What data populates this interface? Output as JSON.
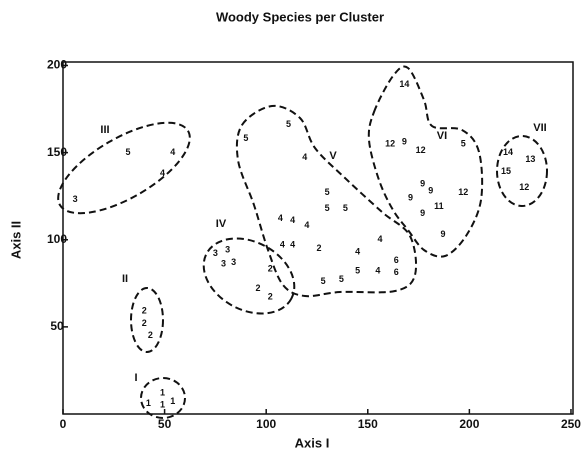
{
  "chart_data": {
    "type": "scatter",
    "title": "Woody Species per Cluster",
    "x_label": "Axis I",
    "y_label": "Axis II",
    "xlim": [
      0,
      251
    ],
    "ylim": [
      0,
      202
    ],
    "xticks": [
      0,
      50,
      100,
      150,
      200,
      250
    ],
    "yticks": [
      50,
      100,
      150,
      200
    ],
    "clusters": [
      "I",
      "II",
      "III",
      "IV",
      "V",
      "VI",
      "VII"
    ],
    "x": [
      42,
      49,
      54,
      49,
      40,
      40,
      43,
      6,
      32,
      54,
      49,
      75,
      81,
      79,
      84,
      102,
      96,
      102,
      90,
      111,
      119,
      130,
      130,
      139,
      107,
      113,
      120,
      108,
      113,
      126,
      145,
      156,
      164,
      164,
      128,
      137,
      145,
      155,
      168,
      161,
      168,
      176,
      197,
      177,
      171,
      181,
      185,
      177,
      197,
      187,
      219,
      230,
      218,
      227
    ],
    "y": [
      6,
      5,
      7,
      12,
      59,
      52,
      45,
      123,
      150,
      150,
      138,
      92,
      94,
      86,
      87,
      83,
      72,
      67,
      158,
      166,
      147,
      127,
      118,
      118,
      112,
      111,
      108,
      97,
      97,
      95,
      93,
      100,
      88,
      81,
      76,
      77,
      82,
      82,
      189,
      155,
      156,
      151,
      155,
      132,
      124,
      128,
      119,
      115,
      127,
      103,
      150,
      146,
      139,
      130
    ],
    "species": [
      1,
      1,
      1,
      1,
      2,
      2,
      2,
      3,
      5,
      4,
      4,
      3,
      3,
      3,
      3,
      2,
      2,
      2,
      5,
      5,
      4,
      5,
      5,
      5,
      4,
      4,
      4,
      4,
      4,
      2,
      4,
      4,
      6,
      6,
      5,
      5,
      5,
      4,
      14,
      12,
      9,
      12,
      5,
      9,
      9,
      9,
      11,
      9,
      12,
      9,
      14,
      13,
      15,
      12
    ]
  }
}
